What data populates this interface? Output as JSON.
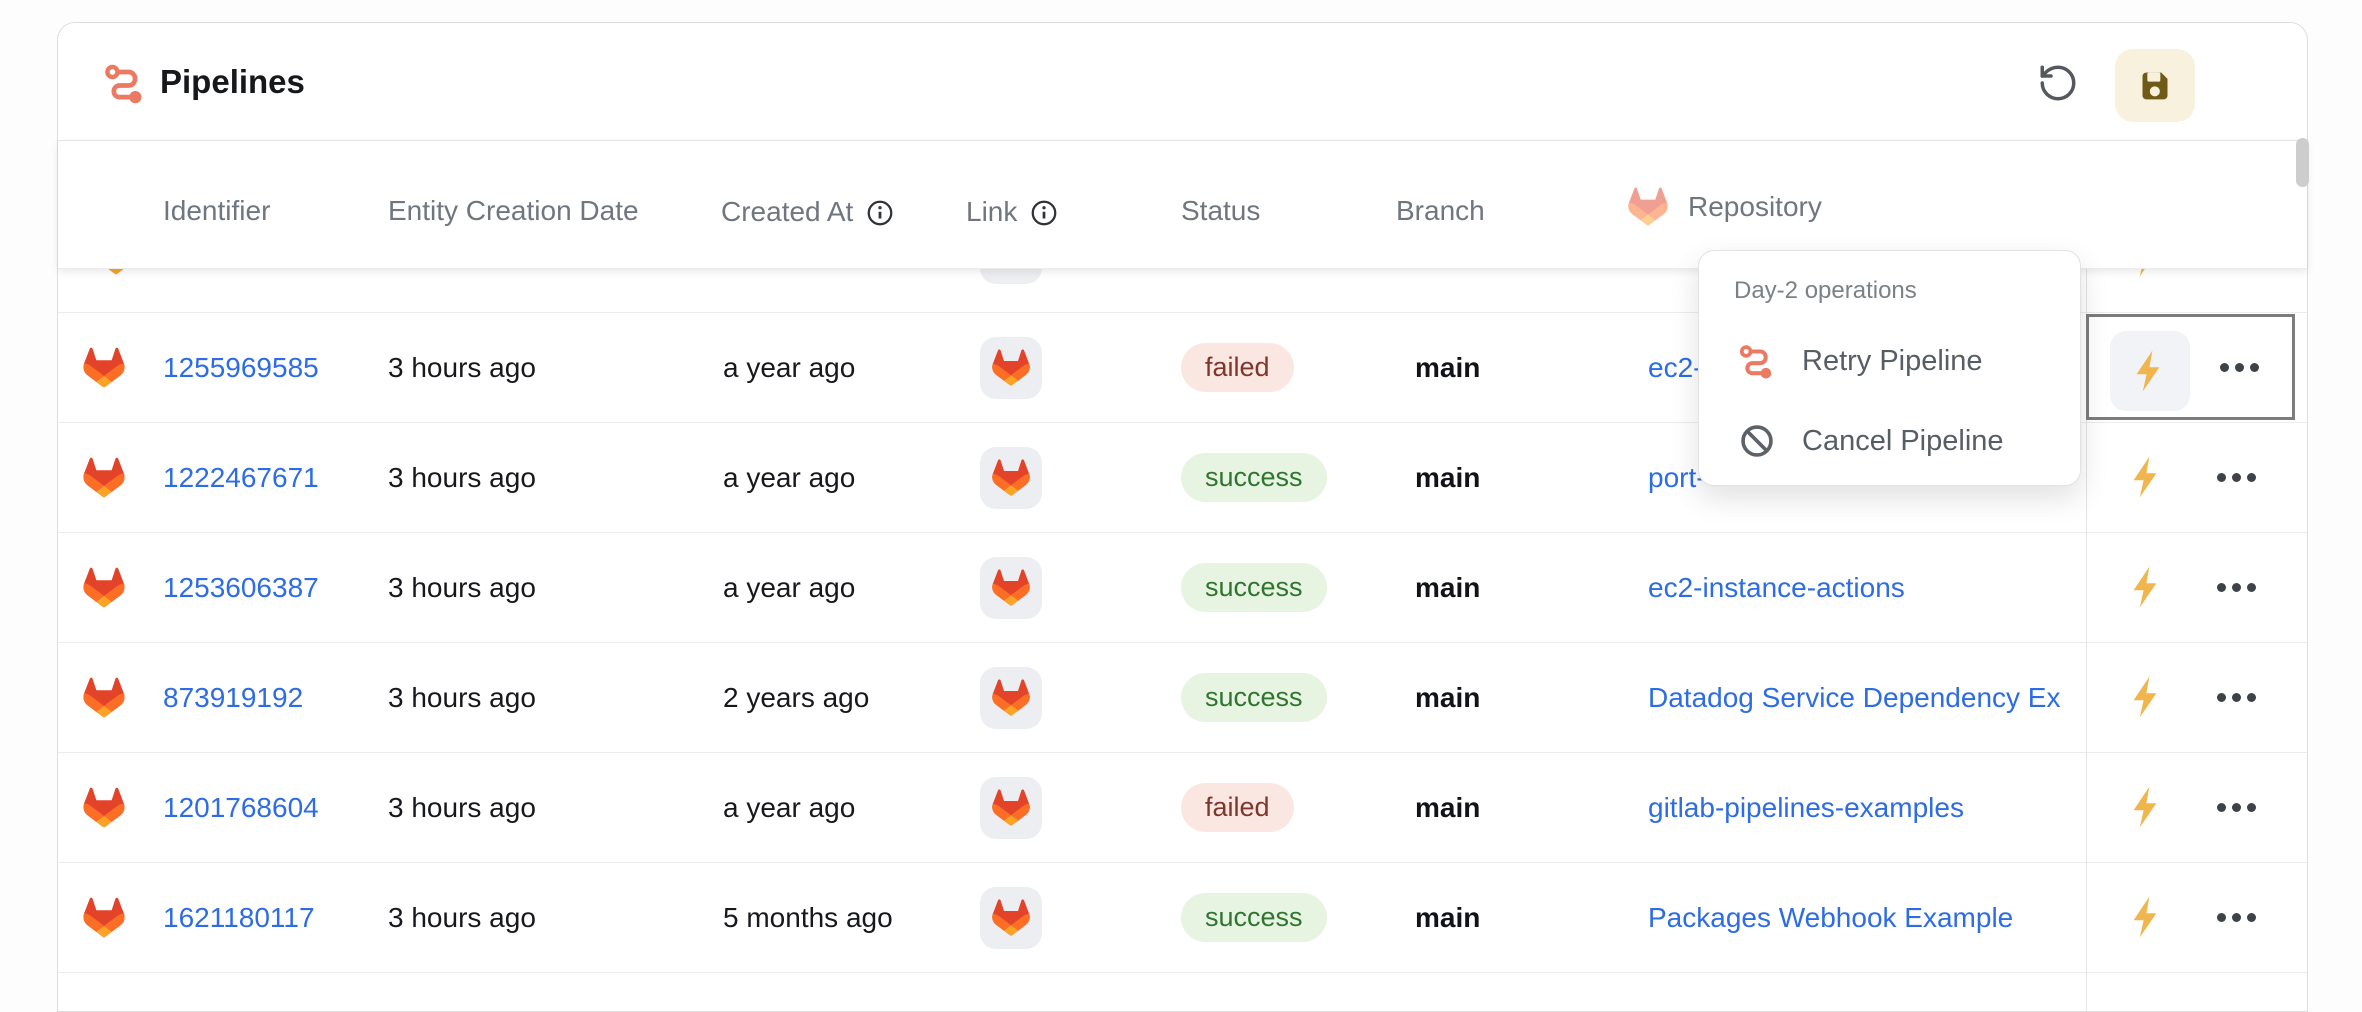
{
  "widget": {
    "title": "Pipelines",
    "toolbar": {
      "undo_icon": "undo-icon",
      "save_icon": "save-icon"
    }
  },
  "table": {
    "columns": {
      "identifier": "Identifier",
      "entity_creation_date": "Entity Creation Date",
      "created_at": "Created At",
      "link": "Link",
      "status": "Status",
      "branch": "Branch",
      "repository": "Repository"
    },
    "add_column_label": "+",
    "rows": [
      {
        "identifier": "1255969585",
        "entity_creation_date": "3 hours ago",
        "created_at": "a year ago",
        "status": "failed",
        "branch": "main",
        "repository": "ec2-",
        "highlighted": true
      },
      {
        "identifier": "1222467671",
        "entity_creation_date": "3 hours ago",
        "created_at": "a year ago",
        "status": "success",
        "branch": "main",
        "repository": "port-"
      },
      {
        "identifier": "1253606387",
        "entity_creation_date": "3 hours ago",
        "created_at": "a year ago",
        "status": "success",
        "branch": "main",
        "repository": "ec2-instance-actions"
      },
      {
        "identifier": "873919192",
        "entity_creation_date": "3 hours ago",
        "created_at": "2 years ago",
        "status": "success",
        "branch": "main",
        "repository": "Datadog Service Dependency Ex"
      },
      {
        "identifier": "1201768604",
        "entity_creation_date": "3 hours ago",
        "created_at": "a year ago",
        "status": "failed",
        "branch": "main",
        "repository": "gitlab-pipelines-examples"
      },
      {
        "identifier": "1621180117",
        "entity_creation_date": "3 hours ago",
        "created_at": "5 months ago",
        "status": "success",
        "branch": "main",
        "repository": "Packages Webhook Example"
      }
    ]
  },
  "menu": {
    "title": "Day-2 operations",
    "items": [
      {
        "label": "Retry Pipeline",
        "icon": "pipeline-route-icon"
      },
      {
        "label": "Cancel Pipeline",
        "icon": "cancel-ban-icon"
      }
    ]
  },
  "colors": {
    "accent_coral": "#ec7a63",
    "link_blue": "#2d6ce5",
    "badge_failed_bg": "#fbe7e2",
    "badge_failed_text": "#7f362a",
    "badge_success_bg": "#e7f4e1",
    "badge_success_text": "#2f7530",
    "lightning_amber": "#f0b54c",
    "save_button_bg": "#f8f1de",
    "save_icon_olive": "#6f5a17",
    "gitlab_red": "#e24329",
    "gitlab_orange": "#fc6d26",
    "gitlab_amber": "#fca326"
  }
}
